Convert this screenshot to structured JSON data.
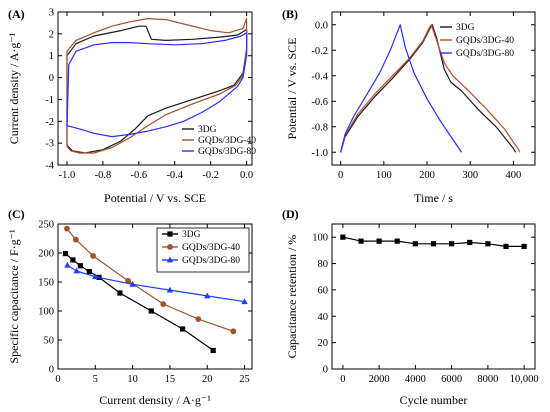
{
  "chart_data": [
    {
      "panel_label": "(A)",
      "type": "line",
      "xlabel": "Potential / V vs. SCE",
      "ylabel": "Current density / A·g⁻¹",
      "xlim": [
        -1.05,
        0.03
      ],
      "ylim": [
        -4,
        3
      ],
      "xticks": [
        -1.0,
        -0.8,
        -0.6,
        -0.4,
        -0.2,
        0.0
      ],
      "xtick_labels": [
        "-1.0",
        "-0.8",
        "-0.6",
        "-0.4",
        "-0.2",
        "0.0"
      ],
      "yticks": [
        -4,
        -3,
        -2,
        -1,
        0,
        1,
        2,
        3
      ],
      "ytick_labels": [
        "-4",
        "-3",
        "-2",
        "-1",
        "0",
        "1",
        "2",
        "3"
      ],
      "legend_position": "bottom-right",
      "series": [
        {
          "name": "3DG",
          "color": "#1a1a1a",
          "closed": true,
          "points": [
            [
              -1.0,
              -3.1
            ],
            [
              -1.0,
              1.0
            ],
            [
              -0.95,
              1.55
            ],
            [
              -0.85,
              1.9
            ],
            [
              -0.7,
              2.15
            ],
            [
              -0.6,
              2.35
            ],
            [
              -0.56,
              2.35
            ],
            [
              -0.53,
              1.75
            ],
            [
              -0.45,
              1.7
            ],
            [
              -0.3,
              1.75
            ],
            [
              -0.15,
              1.85
            ],
            [
              -0.05,
              1.95
            ],
            [
              0.0,
              2.2
            ],
            [
              0.0,
              1.3
            ],
            [
              -0.02,
              0.2
            ],
            [
              -0.07,
              -0.35
            ],
            [
              -0.15,
              -0.6
            ],
            [
              -0.3,
              -1.0
            ],
            [
              -0.45,
              -1.4
            ],
            [
              -0.55,
              -1.75
            ],
            [
              -0.62,
              -2.35
            ],
            [
              -0.7,
              -2.9
            ],
            [
              -0.8,
              -3.3
            ],
            [
              -0.9,
              -3.45
            ],
            [
              -0.97,
              -3.35
            ],
            [
              -1.0,
              -3.1
            ]
          ]
        },
        {
          "name": "GQDs/3DG-40",
          "color": "#a0522d",
          "closed": true,
          "points": [
            [
              -1.0,
              -3.15
            ],
            [
              -1.0,
              1.2
            ],
            [
              -0.95,
              1.7
            ],
            [
              -0.85,
              2.05
            ],
            [
              -0.75,
              2.35
            ],
            [
              -0.65,
              2.55
            ],
            [
              -0.55,
              2.7
            ],
            [
              -0.45,
              2.65
            ],
            [
              -0.35,
              2.45
            ],
            [
              -0.2,
              2.15
            ],
            [
              -0.1,
              2.05
            ],
            [
              -0.02,
              2.25
            ],
            [
              0.0,
              2.7
            ],
            [
              0.0,
              1.2
            ],
            [
              -0.02,
              0.1
            ],
            [
              -0.06,
              -0.35
            ],
            [
              -0.15,
              -0.75
            ],
            [
              -0.3,
              -1.2
            ],
            [
              -0.45,
              -1.7
            ],
            [
              -0.55,
              -2.2
            ],
            [
              -0.65,
              -2.75
            ],
            [
              -0.75,
              -3.2
            ],
            [
              -0.85,
              -3.45
            ],
            [
              -0.93,
              -3.45
            ],
            [
              -0.98,
              -3.35
            ],
            [
              -1.0,
              -3.15
            ]
          ]
        },
        {
          "name": "GQDs/3DG-80",
          "color": "#2c2cff",
          "closed": true,
          "points": [
            [
              -1.0,
              -2.2
            ],
            [
              -0.99,
              0.6
            ],
            [
              -0.95,
              1.2
            ],
            [
              -0.85,
              1.5
            ],
            [
              -0.75,
              1.6
            ],
            [
              -0.65,
              1.6
            ],
            [
              -0.55,
              1.55
            ],
            [
              -0.4,
              1.5
            ],
            [
              -0.25,
              1.55
            ],
            [
              -0.12,
              1.7
            ],
            [
              -0.03,
              1.9
            ],
            [
              0.0,
              2.05
            ],
            [
              0.0,
              1.0
            ],
            [
              -0.02,
              0.0
            ],
            [
              -0.05,
              -0.4
            ],
            [
              -0.15,
              -1.1
            ],
            [
              -0.25,
              -1.6
            ],
            [
              -0.35,
              -2.0
            ],
            [
              -0.45,
              -2.25
            ],
            [
              -0.55,
              -2.45
            ],
            [
              -0.65,
              -2.6
            ],
            [
              -0.75,
              -2.7
            ],
            [
              -0.85,
              -2.55
            ],
            [
              -0.93,
              -2.35
            ],
            [
              -1.0,
              -2.2
            ]
          ]
        }
      ]
    },
    {
      "panel_label": "(B)",
      "type": "line",
      "xlabel": "Time / s",
      "ylabel": "Potential / V vs. SCE",
      "xlim": [
        -20,
        450
      ],
      "ylim": [
        -1.1,
        0.1
      ],
      "xticks": [
        0,
        100,
        200,
        300,
        400
      ],
      "xtick_labels": [
        "0",
        "100",
        "200",
        "300",
        "400"
      ],
      "yticks": [
        -1.0,
        -0.8,
        -0.6,
        -0.4,
        -0.2,
        0.0
      ],
      "ytick_labels": [
        "-1.0",
        "-0.8",
        "-0.6",
        "-0.4",
        "-0.2",
        "0.0"
      ],
      "legend_position": "top-right",
      "series": [
        {
          "name": "3DG",
          "color": "#1a1a1a",
          "points": [
            [
              0,
              -1.0
            ],
            [
              10,
              -0.88
            ],
            [
              40,
              -0.72
            ],
            [
              80,
              -0.56
            ],
            [
              120,
              -0.42
            ],
            [
              160,
              -0.27
            ],
            [
              190,
              -0.14
            ],
            [
              208,
              -0.02
            ],
            [
              212,
              0.0
            ],
            [
              222,
              -0.1
            ],
            [
              240,
              -0.35
            ],
            [
              255,
              -0.45
            ],
            [
              280,
              -0.52
            ],
            [
              320,
              -0.67
            ],
            [
              360,
              -0.8
            ],
            [
              400,
              -0.97
            ],
            [
              405,
              -1.0
            ]
          ]
        },
        {
          "name": "GQDs/3DG-40",
          "color": "#b05030",
          "points": [
            [
              0,
              -1.0
            ],
            [
              10,
              -0.87
            ],
            [
              40,
              -0.7
            ],
            [
              80,
              -0.54
            ],
            [
              120,
              -0.4
            ],
            [
              160,
              -0.26
            ],
            [
              190,
              -0.13
            ],
            [
              206,
              -0.02
            ],
            [
              210,
              0.0
            ],
            [
              222,
              -0.12
            ],
            [
              240,
              -0.3
            ],
            [
              260,
              -0.4
            ],
            [
              300,
              -0.53
            ],
            [
              340,
              -0.67
            ],
            [
              380,
              -0.82
            ],
            [
              410,
              -0.97
            ],
            [
              415,
              -1.0
            ]
          ]
        },
        {
          "name": "GQDs/3DG-80",
          "color": "#2c2cff",
          "points": [
            [
              0,
              -1.0
            ],
            [
              10,
              -0.86
            ],
            [
              30,
              -0.72
            ],
            [
              60,
              -0.55
            ],
            [
              90,
              -0.38
            ],
            [
              115,
              -0.2
            ],
            [
              132,
              -0.05
            ],
            [
              138,
              0.0
            ],
            [
              150,
              -0.18
            ],
            [
              170,
              -0.38
            ],
            [
              200,
              -0.58
            ],
            [
              230,
              -0.75
            ],
            [
              260,
              -0.9
            ],
            [
              280,
              -1.0
            ]
          ]
        }
      ]
    },
    {
      "panel_label": "(C)",
      "type": "line",
      "xlabel": "Current density / A·g⁻¹",
      "ylabel": "Specific capacitance / F·g⁻¹",
      "xlim": [
        0,
        26
      ],
      "ylim": [
        0,
        250
      ],
      "xticks": [
        0,
        5,
        10,
        15,
        20,
        25
      ],
      "xtick_labels": [
        "0",
        "5",
        "10",
        "15",
        "20",
        "25"
      ],
      "yticks": [
        0,
        50,
        100,
        150,
        200,
        250
      ],
      "ytick_labels": [
        "0",
        "50",
        "100",
        "150",
        "200",
        "250"
      ],
      "legend_position": "top-right",
      "series": [
        {
          "name": "3DG",
          "color": "#000000",
          "marker": "square",
          "points": [
            [
              1,
              199
            ],
            [
              2,
              188
            ],
            [
              3,
              178
            ],
            [
              4.2,
              168
            ],
            [
              5.5,
              158
            ],
            [
              8.3,
              131
            ],
            [
              12.5,
              100
            ],
            [
              16.7,
              69
            ],
            [
              20.8,
              32
            ]
          ]
        },
        {
          "name": "GQDs/3DG-40",
          "color": "#a0522d",
          "marker": "circle",
          "points": [
            [
              1.2,
              242
            ],
            [
              2.4,
              223
            ],
            [
              4.7,
              195
            ],
            [
              9.4,
              152
            ],
            [
              14.1,
              112
            ],
            [
              18.8,
              86
            ],
            [
              23.5,
              65
            ]
          ]
        },
        {
          "name": "GQDs/3DG-80",
          "color": "#1f3fff",
          "marker": "triangle",
          "points": [
            [
              1.25,
              179
            ],
            [
              2.5,
              169
            ],
            [
              5,
              159
            ],
            [
              10,
              146
            ],
            [
              15,
              136
            ],
            [
              20,
              126
            ],
            [
              25,
              116
            ]
          ]
        }
      ]
    },
    {
      "panel_label": "(D)",
      "type": "line",
      "xlabel": "Cycle number",
      "ylabel": "Capacitance retention / %",
      "xlim": [
        -600,
        10600
      ],
      "ylim": [
        0,
        110
      ],
      "xticks": [
        0,
        2000,
        4000,
        6000,
        8000,
        10000
      ],
      "xtick_labels": [
        "0",
        "2000",
        "4000",
        "6000",
        "8000",
        "10,000"
      ],
      "yticks": [
        0,
        20,
        40,
        60,
        80,
        100
      ],
      "ytick_labels": [
        "0",
        "20",
        "40",
        "60",
        "80",
        "100"
      ],
      "series": [
        {
          "color": "#000000",
          "marker": "square",
          "points": [
            [
              0,
              100
            ],
            [
              1000,
              97
            ],
            [
              2000,
              97
            ],
            [
              3000,
              97
            ],
            [
              4000,
              95
            ],
            [
              5000,
              95
            ],
            [
              6000,
              95
            ],
            [
              7000,
              96
            ],
            [
              8000,
              95
            ],
            [
              9000,
              93
            ],
            [
              10000,
              93
            ]
          ]
        }
      ]
    }
  ]
}
